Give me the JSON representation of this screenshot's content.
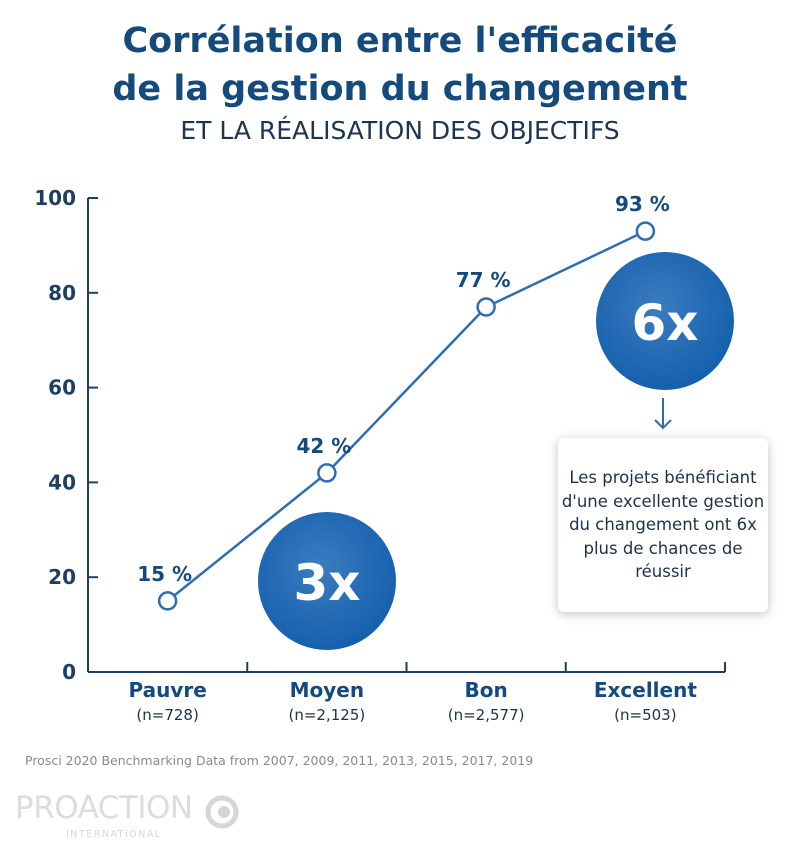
{
  "title_line1": "Corrélation entre l'efficacité",
  "title_line2": "de la gestion du changement",
  "subtitle": "ET LA RÉALISATION DES OBJECTIFS",
  "chart_data": {
    "type": "line",
    "categories": [
      "Pauvre",
      "Moyen",
      "Bon",
      "Excellent"
    ],
    "category_counts": [
      "(n=728)",
      "(n=2,125)",
      "(n=2,577)",
      "(n=503)"
    ],
    "values": [
      15,
      42,
      77,
      93
    ],
    "data_labels": [
      "15 %",
      "42 %",
      "77 %",
      "93 %"
    ],
    "ylim": [
      0,
      100
    ],
    "yticks": [
      0,
      20,
      40,
      60,
      80,
      100
    ],
    "grid": false,
    "color": "#2e6db3",
    "annotations": [
      {
        "text": "3x"
      },
      {
        "text": "6x"
      }
    ]
  },
  "note": "Les projets bénéficiant d'une excellente gestion du changement ont 6x plus de chances de réussir",
  "source": "Prosci 2020 Benchmarking Data from 2007, 2009, 2011, 2013, 2015, 2017, 2019",
  "logo": {
    "name": "PROACTION",
    "tagline": "INTERNATIONAL"
  }
}
